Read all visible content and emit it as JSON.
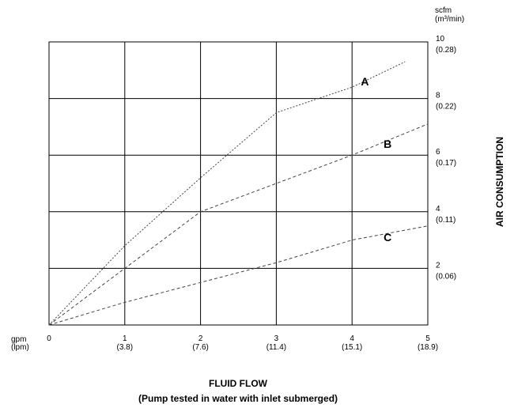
{
  "chart_data": {
    "type": "line",
    "xlabel": "FLUID FLOW",
    "xlabel_sub": "(Pump tested in water with inlet submerged)",
    "ylabel": "AIR CONSUMPTION",
    "x_unit_label": "gpm",
    "x_unit_label_metric": "(lpm)",
    "y_unit_label": "scfm",
    "y_unit_label_metric": "(m³/min)",
    "xlim": [
      0,
      5
    ],
    "ylim": [
      0,
      10
    ],
    "grid": true,
    "x_ticks": [
      {
        "value": 0,
        "label": "0",
        "sub": ""
      },
      {
        "value": 1,
        "label": "1",
        "sub": "(3.8)"
      },
      {
        "value": 2,
        "label": "2",
        "sub": "(7.6)"
      },
      {
        "value": 3,
        "label": "3",
        "sub": "(11.4)"
      },
      {
        "value": 4,
        "label": "4",
        "sub": "(15.1)"
      },
      {
        "value": 5,
        "label": "5",
        "sub": "(18.9)"
      }
    ],
    "y_ticks": [
      {
        "value": 2,
        "label": "2",
        "sub": "(0.06)"
      },
      {
        "value": 4,
        "label": "4",
        "sub": "(0.11)"
      },
      {
        "value": 6,
        "label": "6",
        "sub": "(0.17)"
      },
      {
        "value": 8,
        "label": "8",
        "sub": "(0.22)"
      },
      {
        "value": 10,
        "label": "10",
        "sub": "(0.28)"
      }
    ],
    "series": [
      {
        "name": "A",
        "x": [
          0,
          1,
          2,
          3,
          4,
          4.7
        ],
        "y": [
          0,
          2.8,
          5.2,
          7.5,
          8.4,
          9.3
        ]
      },
      {
        "name": "B",
        "x": [
          0,
          1,
          2,
          3,
          4,
          5
        ],
        "y": [
          0,
          2.0,
          4.0,
          5.0,
          6.0,
          7.1
        ]
      },
      {
        "name": "C",
        "x": [
          0,
          1,
          2,
          3,
          4,
          5
        ],
        "y": [
          0,
          0.8,
          1.5,
          2.2,
          3.0,
          3.5
        ]
      }
    ],
    "labels": [
      {
        "series": "A",
        "text": "A",
        "x": 4.17,
        "y": 8.6
      },
      {
        "series": "B",
        "text": "B",
        "x": 4.47,
        "y": 6.4
      },
      {
        "series": "C",
        "text": "C",
        "x": 4.47,
        "y": 3.1
      }
    ]
  }
}
